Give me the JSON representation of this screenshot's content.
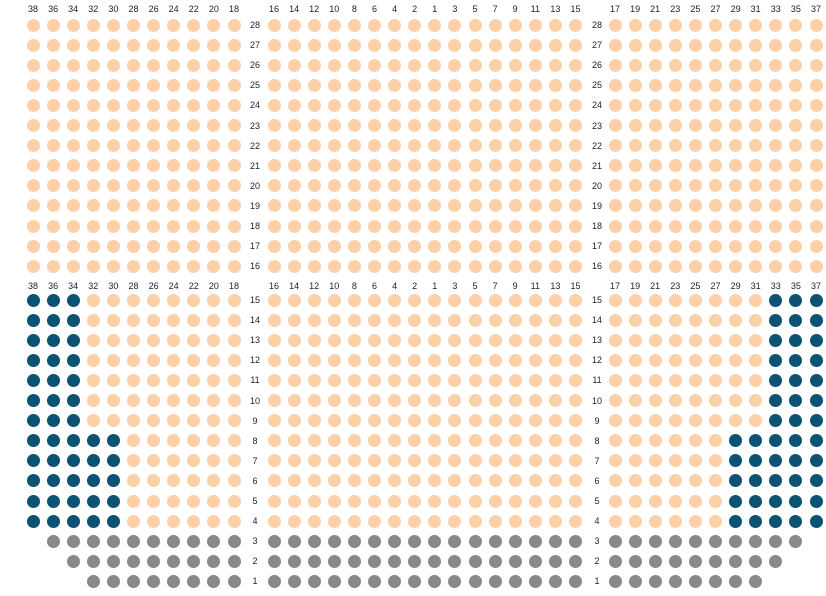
{
  "colors": {
    "available": "#fdd0a8",
    "selected": "#0c5273",
    "unavailable": "#898989"
  },
  "sections": [
    {
      "id": "left",
      "seat_numbers": [
        "38",
        "36",
        "34",
        "32",
        "30",
        "28",
        "26",
        "24",
        "22",
        "20",
        "18"
      ]
    },
    {
      "id": "center",
      "seat_numbers": [
        "16",
        "14",
        "12",
        "10",
        "8",
        "6",
        "4",
        "2",
        "1",
        "3",
        "5",
        "7",
        "9",
        "11",
        "13",
        "15"
      ]
    },
    {
      "id": "right",
      "seat_numbers": [
        "17",
        "19",
        "21",
        "23",
        "25",
        "27",
        "29",
        "31",
        "33",
        "35",
        "37"
      ]
    }
  ],
  "row_label_columns": [
    {
      "id": "left-center"
    },
    {
      "id": "center-right"
    }
  ],
  "upper_block": {
    "rows": [
      "28",
      "27",
      "26",
      "25",
      "24",
      "23",
      "22",
      "21",
      "20",
      "19",
      "18",
      "17",
      "16"
    ]
  },
  "lower_block": {
    "rows": [
      "15",
      "14",
      "13",
      "12",
      "11",
      "10",
      "9",
      "8",
      "7",
      "6",
      "5",
      "4",
      "3",
      "2",
      "1"
    ]
  },
  "seat_status": {
    "left": {
      "15": [
        "selected",
        "selected",
        "selected",
        "available",
        "available",
        "available",
        "available",
        "available",
        "available",
        "available",
        "available"
      ],
      "14": [
        "selected",
        "selected",
        "selected",
        "available",
        "available",
        "available",
        "available",
        "available",
        "available",
        "available",
        "available"
      ],
      "13": [
        "selected",
        "selected",
        "selected",
        "available",
        "available",
        "available",
        "available",
        "available",
        "available",
        "available",
        "available"
      ],
      "12": [
        "selected",
        "selected",
        "selected",
        "available",
        "available",
        "available",
        "available",
        "available",
        "available",
        "available",
        "available"
      ],
      "11": [
        "selected",
        "selected",
        "selected",
        "available",
        "available",
        "available",
        "available",
        "available",
        "available",
        "available",
        "available"
      ],
      "10": [
        "selected",
        "selected",
        "selected",
        "available",
        "available",
        "available",
        "available",
        "available",
        "available",
        "available",
        "available"
      ],
      "9": [
        "selected",
        "selected",
        "selected",
        "available",
        "available",
        "available",
        "available",
        "available",
        "available",
        "available",
        "available"
      ],
      "8": [
        "selected",
        "selected",
        "selected",
        "selected",
        "selected",
        "available",
        "available",
        "available",
        "available",
        "available",
        "available"
      ],
      "7": [
        "selected",
        "selected",
        "selected",
        "selected",
        "selected",
        "available",
        "available",
        "available",
        "available",
        "available",
        "available"
      ],
      "6": [
        "selected",
        "selected",
        "selected",
        "selected",
        "selected",
        "available",
        "available",
        "available",
        "available",
        "available",
        "available"
      ],
      "5": [
        "selected",
        "selected",
        "selected",
        "selected",
        "selected",
        "available",
        "available",
        "available",
        "available",
        "available",
        "available"
      ],
      "4": [
        "selected",
        "selected",
        "selected",
        "selected",
        "selected",
        "available",
        "available",
        "available",
        "available",
        "available",
        "available"
      ],
      "3": [
        null,
        "unavailable",
        "unavailable",
        "unavailable",
        "unavailable",
        "unavailable",
        "unavailable",
        "unavailable",
        "unavailable",
        "unavailable",
        "unavailable"
      ],
      "2": [
        null,
        null,
        "unavailable",
        "unavailable",
        "unavailable",
        "unavailable",
        "unavailable",
        "unavailable",
        "unavailable",
        "unavailable",
        "unavailable"
      ],
      "1": [
        null,
        null,
        null,
        "unavailable",
        "unavailable",
        "unavailable",
        "unavailable",
        "unavailable",
        "unavailable",
        "unavailable",
        "unavailable"
      ]
    },
    "center": {
      "3": [
        "unavailable",
        "unavailable",
        "unavailable",
        "unavailable",
        "unavailable",
        "unavailable",
        "unavailable",
        "unavailable",
        "unavailable",
        "unavailable",
        "unavailable",
        "unavailable",
        "unavailable",
        "unavailable",
        "unavailable",
        "unavailable"
      ],
      "2": [
        "unavailable",
        "unavailable",
        "unavailable",
        "unavailable",
        "unavailable",
        "unavailable",
        "unavailable",
        "unavailable",
        "unavailable",
        "unavailable",
        "unavailable",
        "unavailable",
        "unavailable",
        "unavailable",
        "unavailable",
        "unavailable"
      ],
      "1": [
        "unavailable",
        "unavailable",
        "unavailable",
        "unavailable",
        "unavailable",
        "unavailable",
        "unavailable",
        "unavailable",
        "unavailable",
        "unavailable",
        "unavailable",
        "unavailable",
        "unavailable",
        "unavailable",
        "unavailable",
        "unavailable"
      ]
    },
    "right": {
      "15": [
        "available",
        "available",
        "available",
        "available",
        "available",
        "available",
        "available",
        "available",
        "selected",
        "selected",
        "selected"
      ],
      "14": [
        "available",
        "available",
        "available",
        "available",
        "available",
        "available",
        "available",
        "available",
        "selected",
        "selected",
        "selected"
      ],
      "13": [
        "available",
        "available",
        "available",
        "available",
        "available",
        "available",
        "available",
        "available",
        "selected",
        "selected",
        "selected"
      ],
      "12": [
        "available",
        "available",
        "available",
        "available",
        "available",
        "available",
        "available",
        "available",
        "selected",
        "selected",
        "selected"
      ],
      "11": [
        "available",
        "available",
        "available",
        "available",
        "available",
        "available",
        "available",
        "available",
        "selected",
        "selected",
        "selected"
      ],
      "10": [
        "available",
        "available",
        "available",
        "available",
        "available",
        "available",
        "available",
        "available",
        "selected",
        "selected",
        "selected"
      ],
      "9": [
        "available",
        "available",
        "available",
        "available",
        "available",
        "available",
        "available",
        "available",
        "selected",
        "selected",
        "selected"
      ],
      "8": [
        "available",
        "available",
        "available",
        "available",
        "available",
        "available",
        "selected",
        "selected",
        "selected",
        "selected",
        "selected"
      ],
      "7": [
        "available",
        "available",
        "available",
        "available",
        "available",
        "available",
        "selected",
        "selected",
        "selected",
        "selected",
        "selected"
      ],
      "6": [
        "available",
        "available",
        "available",
        "available",
        "available",
        "available",
        "selected",
        "selected",
        "selected",
        "selected",
        "selected"
      ],
      "5": [
        "available",
        "available",
        "available",
        "available",
        "available",
        "available",
        "selected",
        "selected",
        "selected",
        "selected",
        "selected"
      ],
      "4": [
        "available",
        "available",
        "available",
        "available",
        "available",
        "available",
        "selected",
        "selected",
        "selected",
        "selected",
        "selected"
      ],
      "3": [
        "unavailable",
        "unavailable",
        "unavailable",
        "unavailable",
        "unavailable",
        "unavailable",
        "unavailable",
        "unavailable",
        "unavailable",
        "unavailable",
        null
      ],
      "2": [
        "unavailable",
        "unavailable",
        "unavailable",
        "unavailable",
        "unavailable",
        "unavailable",
        "unavailable",
        "unavailable",
        "unavailable",
        null,
        null
      ],
      "1": [
        "unavailable",
        "unavailable",
        "unavailable",
        "unavailable",
        "unavailable",
        "unavailable",
        "unavailable",
        "unavailable",
        null,
        null,
        null
      ]
    }
  }
}
